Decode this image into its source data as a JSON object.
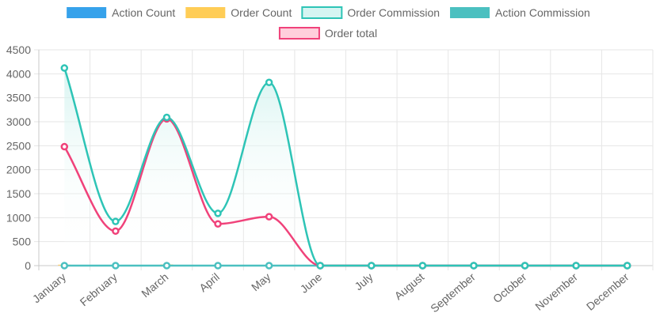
{
  "chart_data": {
    "type": "line",
    "categories": [
      "January",
      "February",
      "March",
      "April",
      "May",
      "June",
      "July",
      "August",
      "September",
      "October",
      "November",
      "December"
    ],
    "ylim": [
      0,
      4500
    ],
    "yticks": [
      0,
      500,
      1000,
      1500,
      2000,
      2500,
      3000,
      3500,
      4000,
      4500
    ],
    "grid": true,
    "legend_position": "top",
    "series": [
      {
        "name": "Action Count",
        "kind": "bar",
        "color": "#36a2eb",
        "values": [
          0,
          0,
          0,
          0,
          0,
          0,
          0,
          0,
          0,
          0,
          0,
          0
        ]
      },
      {
        "name": "Order Count",
        "kind": "bar",
        "color": "#ffcd56",
        "values": [
          20,
          5,
          25,
          5,
          8,
          0,
          0,
          0,
          0,
          0,
          0,
          0
        ]
      },
      {
        "name": "Order Commission",
        "kind": "line",
        "color": "#2ec4b6",
        "fill": "#d6f5f2",
        "values": [
          4120,
          920,
          3090,
          1090,
          3820,
          0,
          0,
          0,
          0,
          0,
          0,
          0
        ]
      },
      {
        "name": "Action Commission",
        "kind": "line",
        "color": "#4bc0c0",
        "values": [
          0,
          0,
          0,
          0,
          0,
          0,
          0,
          0,
          0,
          0,
          0,
          0
        ]
      },
      {
        "name": "Order total",
        "kind": "line",
        "color": "#f0427a",
        "fill": "#ffcfdc",
        "values": [
          2480,
          720,
          3060,
          870,
          1020,
          0,
          0,
          0,
          0,
          0,
          0,
          0
        ]
      }
    ]
  }
}
